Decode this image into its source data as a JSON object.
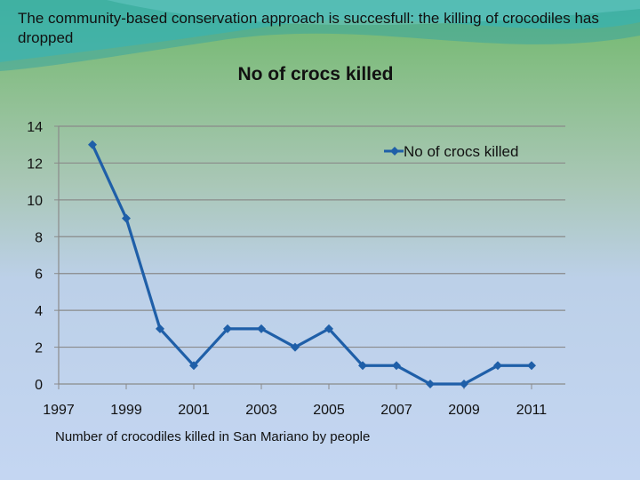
{
  "slide": {
    "title": "The community-based conservation approach is succesfull: the killing of crocodiles has dropped",
    "caption": "Number of crocodiles killed in San Mariano by people"
  },
  "chart_data": {
    "type": "line",
    "title": "No of crocs killed",
    "xlabel": "",
    "ylabel": "",
    "x": [
      1998,
      1999,
      2000,
      2001,
      2002,
      2003,
      2004,
      2005,
      2006,
      2007,
      2008,
      2009,
      2010,
      2011
    ],
    "xlim": [
      1997,
      2012
    ],
    "x_ticks": [
      1997,
      1999,
      2001,
      2003,
      2005,
      2007,
      2009,
      2011
    ],
    "ylim": [
      0,
      14
    ],
    "y_ticks": [
      0,
      2,
      4,
      6,
      8,
      10,
      12,
      14
    ],
    "grid": true,
    "legend_position": "top-right",
    "series": [
      {
        "name": "No of crocs killed",
        "values": [
          13,
          9,
          3,
          1,
          3,
          3,
          2,
          3,
          1,
          1,
          0,
          0,
          1,
          1
        ],
        "color": "#1f5fa8",
        "marker": "diamond"
      }
    ]
  }
}
